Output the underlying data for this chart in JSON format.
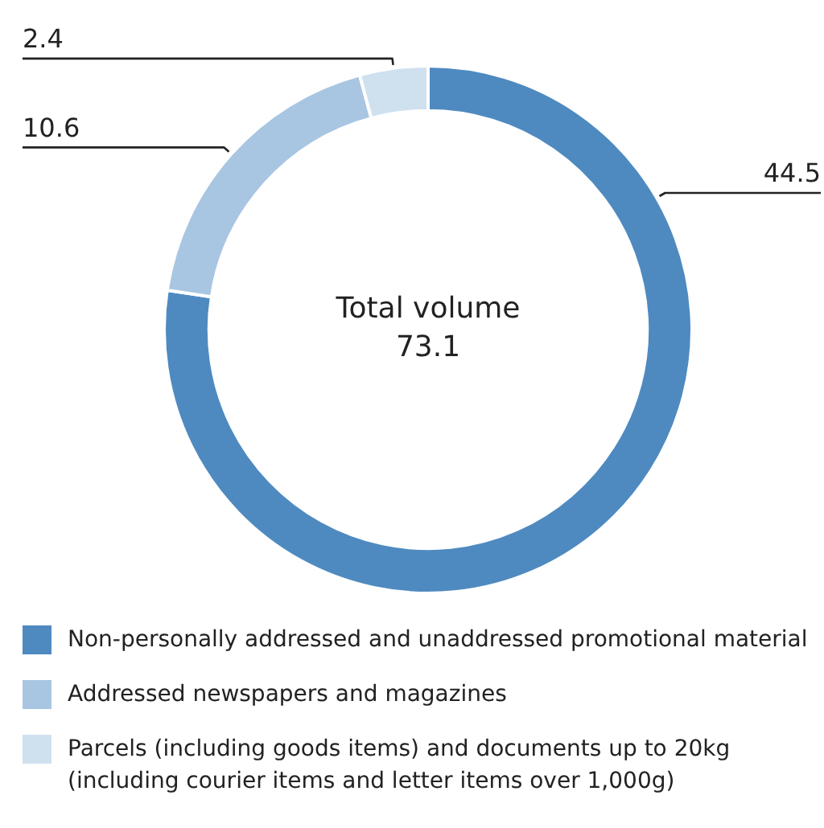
{
  "chart_data": {
    "type": "donut",
    "categories": [
      "Non-personally addressed and unaddressed promotional material",
      "Addressed newspapers and magazines",
      "Parcels (including goods items) and documents up to 20kg (including courier items and letter items over 1,000g)"
    ],
    "values": [
      44.5,
      10.6,
      2.4
    ],
    "colors": [
      "#4e8ac0",
      "#a8c6e2",
      "#cfe0ef"
    ],
    "data_labels": true,
    "legend": "bottom",
    "annotations": [
      "Total volume",
      "73.1"
    ]
  }
}
